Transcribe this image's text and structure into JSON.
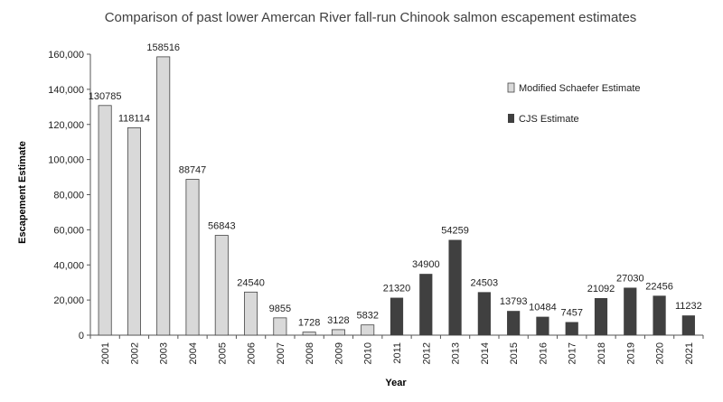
{
  "chart_data": {
    "type": "bar",
    "title": "Comparison of past lower Amercan River fall-run Chinook salmon escapement estimates",
    "xlabel": "Year",
    "ylabel": "Escapement Estimate",
    "ylim": [
      0,
      160000
    ],
    "yticks": [
      "0",
      "20,000",
      "40,000",
      "60,000",
      "80,000",
      "100,000",
      "120,000",
      "140,000",
      "160,000"
    ],
    "categories": [
      "2001",
      "2002",
      "2003",
      "2004",
      "2005",
      "2006",
      "2007",
      "2008",
      "2009",
      "2010",
      "2011",
      "2012",
      "2013",
      "2014",
      "2015",
      "2016",
      "2017",
      "2018",
      "2019",
      "2020",
      "2021"
    ],
    "series": [
      {
        "name": "Modified Schaefer Estimate",
        "color": "#d9d9d9",
        "values": [
          130785,
          118114,
          158516,
          88747,
          56843,
          24540,
          9855,
          1728,
          3128,
          5832,
          null,
          null,
          null,
          null,
          null,
          null,
          null,
          null,
          null,
          null,
          null
        ]
      },
      {
        "name": "CJS Estimate",
        "color": "#404040",
        "values": [
          null,
          null,
          null,
          null,
          null,
          null,
          null,
          null,
          null,
          null,
          21320,
          34900,
          54259,
          24503,
          13793,
          10484,
          7457,
          21092,
          27030,
          22456,
          11232
        ]
      }
    ],
    "legend_position": "right",
    "grid": false
  }
}
